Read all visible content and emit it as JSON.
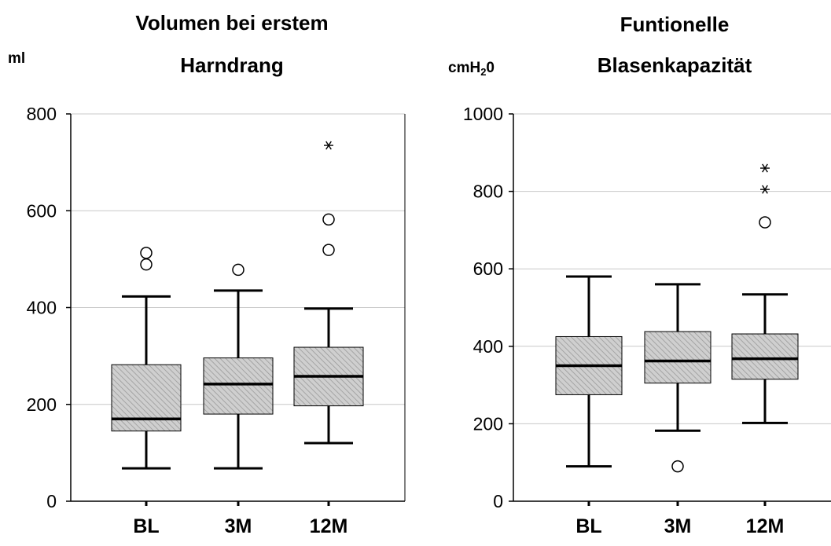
{
  "colors": {
    "box_fill": "#cfcfcf",
    "hatch": "#9a9a9a",
    "grid": "#c8c8c8",
    "line": "#000000"
  },
  "chart_data": [
    {
      "type": "boxplot",
      "title_lines": [
        "Volumen bei erstem",
        "Harndrang"
      ],
      "unit": "ml",
      "unit_sub": "",
      "unit_tail": "",
      "ylim": [
        0,
        800
      ],
      "yticks": [
        0,
        200,
        400,
        600,
        800
      ],
      "grid": true,
      "categories": [
        "BL",
        "3M",
        "12M"
      ],
      "boxes": [
        {
          "category": "BL",
          "whisker_low": 68,
          "q1": 145,
          "median": 170,
          "q3": 282,
          "whisker_high": 423,
          "outliers": [
            489,
            513
          ],
          "extremes": []
        },
        {
          "category": "3M",
          "whisker_low": 68,
          "q1": 180,
          "median": 242,
          "q3": 296,
          "whisker_high": 435,
          "outliers": [
            478
          ],
          "extremes": []
        },
        {
          "category": "12M",
          "whisker_low": 120,
          "q1": 197,
          "median": 258,
          "q3": 318,
          "whisker_high": 398,
          "outliers": [
            519,
            582
          ],
          "extremes": [
            735
          ]
        }
      ]
    },
    {
      "type": "boxplot",
      "title_lines": [
        "Funtionelle",
        "Blasenkapazität"
      ],
      "unit": "cmH",
      "unit_sub": "2",
      "unit_tail": "0",
      "ylim": [
        0,
        1000
      ],
      "yticks": [
        0,
        200,
        400,
        600,
        800,
        1000
      ],
      "grid": true,
      "categories": [
        "BL",
        "3M",
        "12M"
      ],
      "boxes": [
        {
          "category": "BL",
          "whisker_low": 90,
          "q1": 275,
          "median": 350,
          "q3": 425,
          "whisker_high": 580,
          "outliers": [],
          "extremes": []
        },
        {
          "category": "3M",
          "whisker_low": 182,
          "q1": 305,
          "median": 362,
          "q3": 438,
          "whisker_high": 560,
          "outliers": [
            90
          ],
          "extremes": []
        },
        {
          "category": "12M",
          "whisker_low": 202,
          "q1": 315,
          "median": 368,
          "q3": 432,
          "whisker_high": 534,
          "outliers": [
            720
          ],
          "extremes": [
            805,
            860
          ]
        }
      ]
    }
  ]
}
